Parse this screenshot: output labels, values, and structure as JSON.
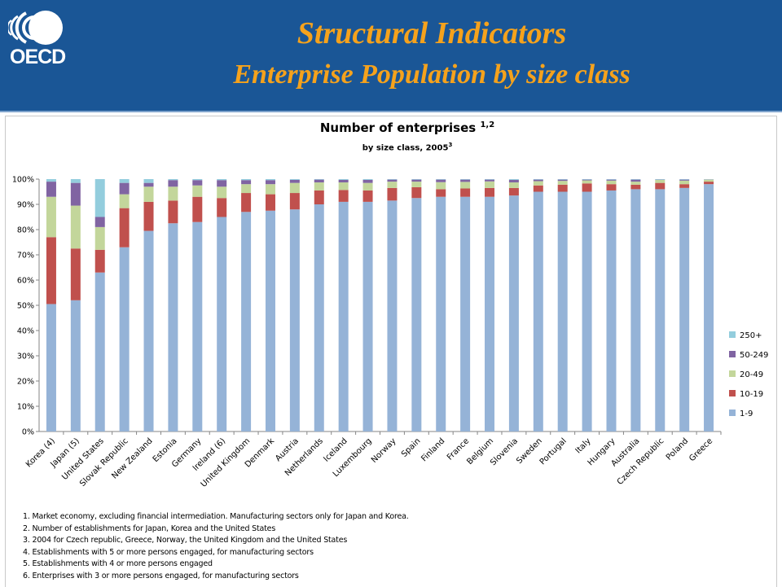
{
  "header": {
    "logo_text": "OECD",
    "title_line1": "Structural Indicators",
    "title_line2": "Enterprise Population by size class",
    "background_color": "#1a5696",
    "title_color": "#f5a21c"
  },
  "chart_data": {
    "type": "bar",
    "stacked": true,
    "title": "Number of enterprises",
    "title_superscript": "1,2",
    "subtitle": "by size class, 2005",
    "subtitle_superscript": "3",
    "ylim": [
      0,
      100
    ],
    "y_ticks": [
      "0%",
      "10%",
      "20%",
      "30%",
      "40%",
      "50%",
      "60%",
      "70%",
      "80%",
      "90%",
      "100%"
    ],
    "grid": false,
    "legend_position": "right",
    "categories": [
      "Korea (4)",
      "Japan (5)",
      "United States",
      "Slovak Republic",
      "New Zealand",
      "Estonia",
      "Germany",
      "Ireland (6)",
      "United Kingdom",
      "Denmark",
      "Austria",
      "Netherlands",
      "Iceland",
      "Luxembourg",
      "Norway",
      "Spain",
      "Finland",
      "France",
      "Belgium",
      "Slovenia",
      "Sweden",
      "Portugal",
      "Italy",
      "Hungary",
      "Australia",
      "Czech Republic",
      "Poland",
      "Greece"
    ],
    "series": [
      {
        "name": "1-9",
        "color": "#95b3d7",
        "values": [
          50.5,
          52,
          63,
          73,
          79.5,
          82.5,
          83,
          85,
          87,
          87.5,
          88,
          90,
          91,
          91,
          91.5,
          92.5,
          93,
          93,
          93,
          93.5,
          95,
          95,
          95,
          95.5,
          96,
          96,
          96.5,
          98
        ]
      },
      {
        "name": "10-19",
        "color": "#c0504d",
        "values": [
          26.5,
          20.5,
          9,
          15.5,
          11.5,
          9,
          10,
          7.5,
          7.5,
          6.5,
          6.5,
          5.5,
          4.7,
          4.5,
          5,
          4.3,
          3,
          3.3,
          3.5,
          3,
          2.5,
          2.8,
          3.3,
          2.5,
          1.8,
          2.5,
          1.5,
          1
        ]
      },
      {
        "name": "20-49",
        "color": "#c3d69b",
        "values": [
          16,
          17,
          9,
          5.5,
          6,
          5.5,
          4.5,
          4.5,
          3.5,
          4,
          4,
          3.2,
          3,
          3,
          2.5,
          2.2,
          2.8,
          2.6,
          2.6,
          2.2,
          1.7,
          1.5,
          1.2,
          1.4,
          1.2,
          1.2,
          1.4,
          0.8
        ]
      },
      {
        "name": "50-249",
        "color": "#8064a2",
        "values": [
          6,
          9,
          4,
          4.5,
          1.5,
          2.6,
          2.1,
          2.6,
          1.6,
          1.6,
          1.2,
          1.1,
          1,
          1.2,
          0.8,
          0.8,
          1,
          0.9,
          0.7,
          1,
          0.6,
          0.5,
          0.3,
          0.4,
          0.8,
          0.1,
          0.4,
          0.1
        ]
      },
      {
        "name": "250+",
        "color": "#93cddd",
        "values": [
          1,
          1.5,
          15,
          1.5,
          1.5,
          0.4,
          0.4,
          0.4,
          0.4,
          0.4,
          0.3,
          0.2,
          0.3,
          0.3,
          0.2,
          0.2,
          0.2,
          0.2,
          0.2,
          0.3,
          0.2,
          0.2,
          0.2,
          0.2,
          0.2,
          0.2,
          0.2,
          0.1
        ]
      }
    ]
  },
  "notes": [
    "1.  Market economy, excluding financial intermediation. Manufacturing sectors only for Japan and Korea.",
    "2.  Number of establishments for Japan, Korea and the United States",
    "3.  2004 for Czech republic, Greece, Norway, the United Kingdom and the United States",
    "4.  Establishments with 5 or more persons engaged, for manufacturing sectors",
    "5.  Establishments with 4 or more persons engaged",
    "6.  Enterprises with 3 or more persons engaged, for manufacturing sectors"
  ]
}
